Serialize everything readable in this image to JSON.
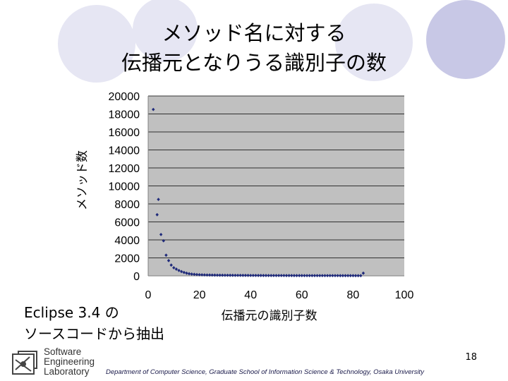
{
  "slide": {
    "title_line1": "メソッド名に対する",
    "title_line2": "伝播元となりうる識別子の数",
    "note_line1": "Eclipse 3.4 の",
    "note_line2": "ソースコードから抽出",
    "page_number": "18",
    "footer": "Department of Computer Science, Graduate School of Information Science & Technology, Osaka University",
    "logo_lines": [
      "Software",
      "Engineering",
      "Laboratory"
    ]
  },
  "colors": {
    "plot_bg": "#c0c0c0",
    "marker": "#1f2a7a",
    "circle_light": "#e8e8f4",
    "circle_dark": "#c8c8e8"
  },
  "chart_data": {
    "type": "scatter",
    "title": "",
    "xlabel": "伝播元の識別子数",
    "ylabel": "メソッド数",
    "xlim": [
      0,
      100
    ],
    "ylim": [
      0,
      20000
    ],
    "xticks": [
      0,
      20,
      40,
      60,
      80,
      100
    ],
    "yticks": [
      0,
      2000,
      4000,
      6000,
      8000,
      10000,
      12000,
      14000,
      16000,
      18000,
      20000
    ],
    "grid": true,
    "legend": "none",
    "series": [
      {
        "points": [
          [
            2,
            18500
          ],
          [
            4,
            8500
          ],
          [
            3.5,
            6800
          ],
          [
            5,
            4600
          ],
          [
            6,
            3900
          ],
          [
            7,
            2300
          ],
          [
            8,
            1700
          ],
          [
            9,
            1200
          ],
          [
            10,
            900
          ],
          [
            11,
            750
          ],
          [
            12,
            600
          ],
          [
            13,
            480
          ],
          [
            14,
            380
          ],
          [
            15,
            300
          ],
          [
            16,
            240
          ],
          [
            17,
            200
          ],
          [
            18,
            170
          ],
          [
            19,
            150
          ],
          [
            20,
            130
          ],
          [
            21,
            120
          ],
          [
            22,
            110
          ],
          [
            23,
            100
          ],
          [
            24,
            95
          ],
          [
            25,
            90
          ],
          [
            26,
            85
          ],
          [
            27,
            80
          ],
          [
            28,
            75
          ],
          [
            29,
            72
          ],
          [
            30,
            70
          ],
          [
            31,
            68
          ],
          [
            32,
            65
          ],
          [
            33,
            62
          ],
          [
            34,
            60
          ],
          [
            35,
            58
          ],
          [
            36,
            56
          ],
          [
            37,
            55
          ],
          [
            38,
            54
          ],
          [
            39,
            52
          ],
          [
            40,
            50
          ],
          [
            41,
            48
          ],
          [
            42,
            47
          ],
          [
            43,
            46
          ],
          [
            44,
            45
          ],
          [
            45,
            44
          ],
          [
            46,
            43
          ],
          [
            47,
            42
          ],
          [
            48,
            41
          ],
          [
            49,
            40
          ],
          [
            50,
            40
          ],
          [
            51,
            39
          ],
          [
            52,
            38
          ],
          [
            53,
            37
          ],
          [
            54,
            36
          ],
          [
            55,
            36
          ],
          [
            56,
            35
          ],
          [
            57,
            34
          ],
          [
            58,
            34
          ],
          [
            59,
            33
          ],
          [
            60,
            33
          ],
          [
            61,
            32
          ],
          [
            62,
            32
          ],
          [
            63,
            31
          ],
          [
            64,
            31
          ],
          [
            65,
            30
          ],
          [
            66,
            30
          ],
          [
            67,
            29
          ],
          [
            68,
            29
          ],
          [
            69,
            28
          ],
          [
            70,
            28
          ],
          [
            71,
            28
          ],
          [
            72,
            27
          ],
          [
            73,
            27
          ],
          [
            74,
            27
          ],
          [
            75,
            26
          ],
          [
            76,
            26
          ],
          [
            77,
            26
          ],
          [
            78,
            25
          ],
          [
            79,
            25
          ],
          [
            80,
            25
          ],
          [
            81,
            24
          ],
          [
            82,
            24
          ],
          [
            83,
            24
          ],
          [
            84,
            300
          ]
        ]
      }
    ]
  }
}
